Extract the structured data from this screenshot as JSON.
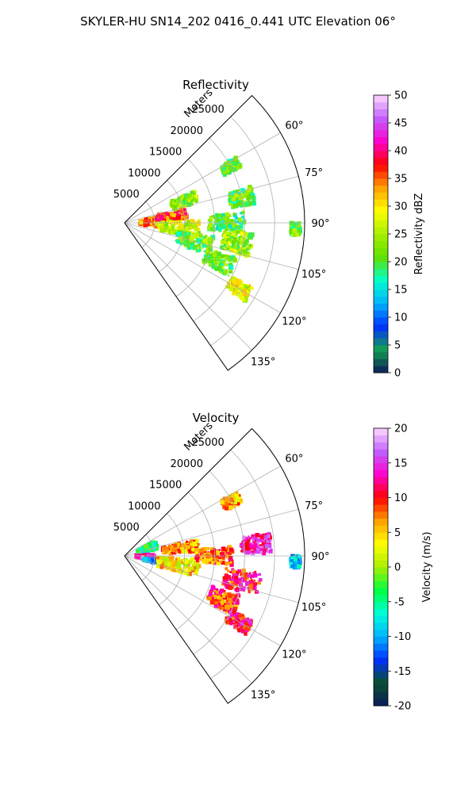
{
  "figure": {
    "title": "SKYLER-HU  SN14_202  0416_0.441 UTC Elevation 06°"
  },
  "chart_data": [
    {
      "type": "heatmap",
      "title": "Reflectivity",
      "projection": "polar sector",
      "range_label": "Meters",
      "range_ticks": [
        "5000",
        "10000",
        "15000",
        "20000",
        "25000"
      ],
      "range_values": [
        5000,
        10000,
        15000,
        20000,
        25000
      ],
      "range_max": 30000,
      "azimuth_range": [
        45,
        145
      ],
      "azimuth_ticks": [
        "60°",
        "75°",
        "90°",
        "105°",
        "120°",
        "135°"
      ],
      "azimuth_values": [
        60,
        75,
        90,
        105,
        120,
        135
      ],
      "grid": true,
      "colorbar": {
        "label": "Reflectivity dBZ",
        "min": 0,
        "max": 50,
        "ticks": [
          "0",
          "5",
          "10",
          "15",
          "20",
          "25",
          "30",
          "35",
          "40",
          "45",
          "50"
        ],
        "stops": [
          "#0a1a5c",
          "#14a050",
          "#0030ff",
          "#00b4ff",
          "#00ffcc",
          "#60e000",
          "#a8ee00",
          "#ffff00",
          "#ffa000",
          "#ff0000",
          "#ff00cc",
          "#c060ff",
          "#ffd8ff"
        ]
      },
      "echo_regions": [
        {
          "az": 88,
          "r": 4500,
          "daz": 18,
          "dr": 4000,
          "v": 34
        },
        {
          "az": 82,
          "r": 8000,
          "daz": 10,
          "dr": 5000,
          "v": 36
        },
        {
          "az": 70,
          "r": 10500,
          "daz": 10,
          "dr": 4500,
          "v": 24
        },
        {
          "az": 95,
          "r": 9000,
          "daz": 14,
          "dr": 7000,
          "v": 26
        },
        {
          "az": 105,
          "r": 12000,
          "daz": 12,
          "dr": 6000,
          "v": 22
        },
        {
          "az": 90,
          "r": 17000,
          "daz": 10,
          "dr": 6000,
          "v": 20
        },
        {
          "az": 78,
          "r": 20000,
          "daz": 8,
          "dr": 4000,
          "v": 21
        },
        {
          "az": 100,
          "r": 19000,
          "daz": 10,
          "dr": 5000,
          "v": 24
        },
        {
          "az": 112,
          "r": 17000,
          "daz": 10,
          "dr": 5000,
          "v": 22
        },
        {
          "az": 120,
          "r": 22000,
          "daz": 6,
          "dr": 4000,
          "v": 28
        },
        {
          "az": 62,
          "r": 20000,
          "daz": 5,
          "dr": 3000,
          "v": 20
        },
        {
          "az": 92,
          "r": 28500,
          "daz": 4,
          "dr": 1500,
          "v": 22
        }
      ]
    },
    {
      "type": "heatmap",
      "title": "Velocity",
      "projection": "polar sector",
      "range_label": "Meters",
      "range_ticks": [
        "5000",
        "10000",
        "15000",
        "20000",
        "25000"
      ],
      "range_values": [
        5000,
        10000,
        15000,
        20000,
        25000
      ],
      "range_max": 30000,
      "azimuth_range": [
        45,
        145
      ],
      "azimuth_ticks": [
        "60°",
        "75°",
        "90°",
        "105°",
        "120°",
        "135°"
      ],
      "azimuth_values": [
        60,
        75,
        90,
        105,
        120,
        135
      ],
      "grid": true,
      "colorbar": {
        "label": "Velocity (m/s)",
        "min": -20,
        "max": 20,
        "ticks": [
          "-20",
          "-15",
          "-10",
          "-5",
          "0",
          "5",
          "10",
          "15",
          "20"
        ],
        "stops": [
          "#0a1a5c",
          "#0a5030",
          "#0030ff",
          "#00b4ff",
          "#00ffd8",
          "#00ff40",
          "#a8ee00",
          "#ffff00",
          "#ffa000",
          "#ff0000",
          "#ff00cc",
          "#c060ff",
          "#ffd8ff"
        ]
      },
      "echo_regions": [
        {
          "az": 72,
          "r": 4000,
          "daz": 14,
          "dr": 3500,
          "v": -5
        },
        {
          "az": 92,
          "r": 3500,
          "daz": 10,
          "dr": 3000,
          "v": 15
        },
        {
          "az": 100,
          "r": 4500,
          "daz": 6,
          "dr": 2500,
          "v": -10
        },
        {
          "az": 82,
          "r": 9500,
          "daz": 10,
          "dr": 6000,
          "v": 7
        },
        {
          "az": 100,
          "r": 9000,
          "daz": 14,
          "dr": 7000,
          "v": 4
        },
        {
          "az": 90,
          "r": 15000,
          "daz": 10,
          "dr": 6000,
          "v": 8
        },
        {
          "az": 85,
          "r": 22000,
          "daz": 8,
          "dr": 5000,
          "v": 14
        },
        {
          "az": 102,
          "r": 20000,
          "daz": 10,
          "dr": 6000,
          "v": 11
        },
        {
          "az": 114,
          "r": 18000,
          "daz": 10,
          "dr": 5000,
          "v": 9
        },
        {
          "az": 120,
          "r": 22000,
          "daz": 6,
          "dr": 4000,
          "v": 11
        },
        {
          "az": 63,
          "r": 20000,
          "daz": 5,
          "dr": 3000,
          "v": 6
        },
        {
          "az": 92,
          "r": 28500,
          "daz": 4,
          "dr": 1500,
          "v": -10
        }
      ]
    }
  ]
}
